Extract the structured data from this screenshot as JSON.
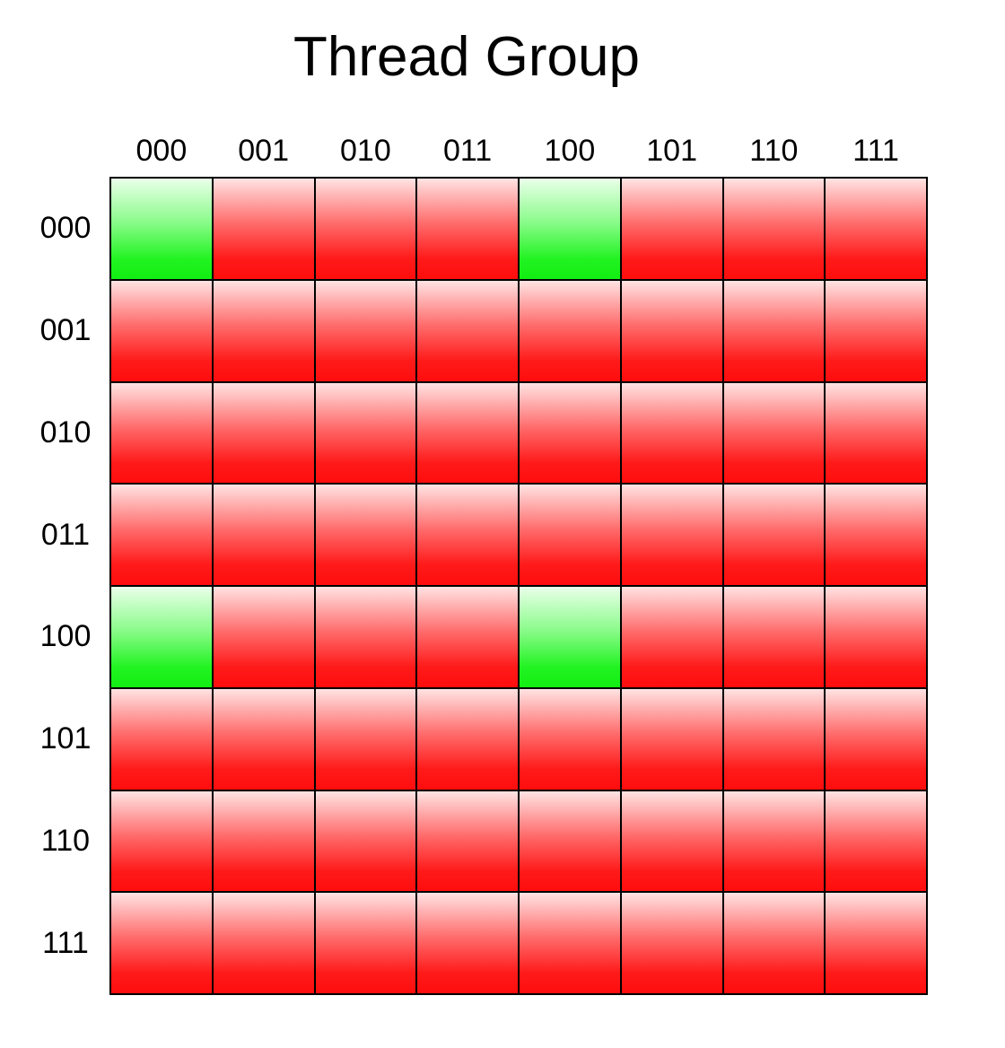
{
  "title": "Thread Group",
  "columns": [
    "000",
    "001",
    "010",
    "011",
    "100",
    "101",
    "110",
    "111"
  ],
  "rows": [
    "000",
    "001",
    "010",
    "011",
    "100",
    "101",
    "110",
    "111"
  ],
  "active_cells": [
    [
      0,
      0
    ],
    [
      0,
      4
    ],
    [
      4,
      0
    ],
    [
      4,
      4
    ]
  ],
  "colors": {
    "active": "#12ee12",
    "inactive": "#ff0d0d",
    "grid_line": "#000000"
  }
}
